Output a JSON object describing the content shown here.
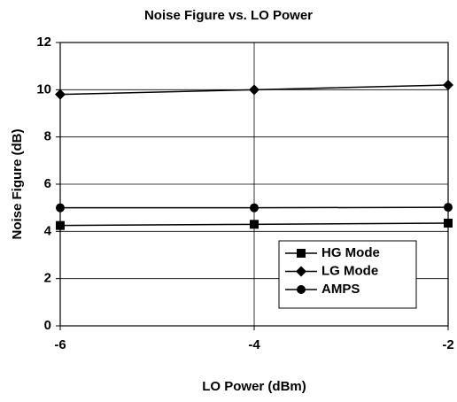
{
  "chart_data": {
    "type": "line",
    "title": "Noise Figure vs. LO Power",
    "xlabel": "LO Power (dBm)",
    "ylabel": "Noise Figure (dB)",
    "x": [
      -6,
      -4,
      -2
    ],
    "series": [
      {
        "name": "HG Mode",
        "color": "#000000",
        "marker": "square",
        "values": [
          4.25,
          4.3,
          4.35
        ]
      },
      {
        "name": "LG Mode",
        "color": "#000000",
        "marker": "diamond",
        "values": [
          9.8,
          10.0,
          10.2
        ]
      },
      {
        "name": "AMPS",
        "color": "#000000",
        "marker": "circle",
        "values": [
          5.0,
          5.0,
          5.02
        ]
      }
    ],
    "xlim": [
      -6,
      -2
    ],
    "xticks": [
      -6,
      -4,
      -2
    ],
    "ylim": [
      0,
      12
    ],
    "yticks": [
      0,
      2,
      4,
      6,
      8,
      10,
      12
    ],
    "grid": true,
    "legend": "lower right"
  }
}
